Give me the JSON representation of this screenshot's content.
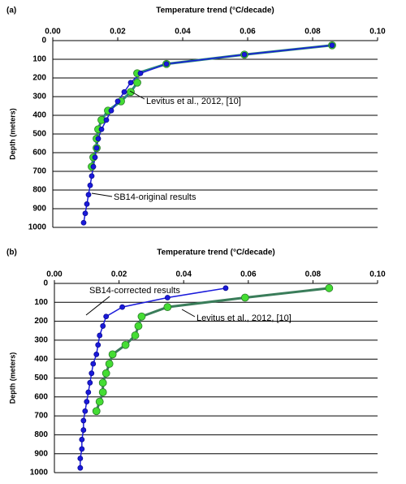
{
  "chart_data": [
    {
      "type": "line",
      "panel": "(a)",
      "title": "Temperature trend (°C/decade)",
      "y_label": "Depth (meters)",
      "xlim": [
        0,
        0.1
      ],
      "xticks": [
        {
          "value": 0,
          "label": "0.00"
        },
        0.02,
        0.04,
        0.06,
        0.08,
        {
          "value": 0.1,
          "label": "0.10"
        }
      ],
      "ylim": [
        0,
        1000
      ],
      "y_inverted": true,
      "yticks": [
        0,
        100,
        200,
        300,
        400,
        500,
        600,
        700,
        800,
        900,
        1000
      ],
      "grid": true,
      "series": [
        {
          "name": "Levitus et al., 2012, [10]",
          "color": "#44dd33",
          "line_color": "#2a8a7a",
          "y": [
            25,
            75,
            125,
            175,
            225,
            275,
            325,
            375,
            425,
            475,
            525,
            575,
            625,
            675
          ],
          "values": [
            0.086,
            0.059,
            0.035,
            0.026,
            0.026,
            0.024,
            0.021,
            0.017,
            0.015,
            0.014,
            0.0135,
            0.0135,
            0.0125,
            0.012
          ]
        },
        {
          "name": "SB14-original results",
          "color": "#1a1adb",
          "line_color": "#1a1adb",
          "y": [
            25,
            75,
            125,
            175,
            225,
            275,
            325,
            375,
            425,
            475,
            525,
            575,
            625,
            675,
            725,
            775,
            825,
            875,
            925,
            975
          ],
          "values": [
            0.086,
            0.059,
            0.035,
            0.027,
            0.024,
            0.022,
            0.02,
            0.018,
            0.0165,
            0.015,
            0.014,
            0.0135,
            0.013,
            0.0125,
            0.012,
            0.0115,
            0.011,
            0.0105,
            0.01,
            0.0095
          ]
        }
      ]
    },
    {
      "type": "line",
      "panel": "(b)",
      "title": "Temperature trend (°C/decade)",
      "y_label": "Depth (meters)",
      "xlim": [
        0,
        0.1
      ],
      "xticks": [
        {
          "value": 0,
          "label": "0.00"
        },
        0.02,
        0.04,
        0.06,
        0.08,
        {
          "value": 0.1,
          "label": "0.10"
        }
      ],
      "ylim": [
        0,
        1000
      ],
      "y_inverted": true,
      "yticks": [
        0,
        100,
        200,
        300,
        400,
        500,
        600,
        700,
        800,
        900,
        1000
      ],
      "grid": true,
      "series": [
        {
          "name": "Levitus et al., 2012, [10]",
          "color": "#44dd33",
          "line_color": "#3a7d5a",
          "y": [
            25,
            75,
            125,
            175,
            225,
            275,
            325,
            375,
            425,
            475,
            525,
            575,
            625,
            675
          ],
          "values": [
            0.085,
            0.059,
            0.035,
            0.027,
            0.026,
            0.025,
            0.022,
            0.018,
            0.017,
            0.016,
            0.015,
            0.015,
            0.014,
            0.013
          ]
        },
        {
          "name": "SB14-corrected results",
          "color": "#1a1adb",
          "line_color": "#1a1adb",
          "y": [
            25,
            75,
            125,
            175,
            225,
            275,
            325,
            375,
            425,
            475,
            525,
            575,
            625,
            675,
            725,
            775,
            825,
            875,
            925,
            975
          ],
          "values": [
            0.053,
            0.035,
            0.021,
            0.016,
            0.015,
            0.014,
            0.0135,
            0.013,
            0.012,
            0.0115,
            0.011,
            0.0105,
            0.01,
            0.0095,
            0.009,
            0.009,
            0.0085,
            0.0085,
            0.008,
            0.008
          ]
        }
      ]
    }
  ]
}
